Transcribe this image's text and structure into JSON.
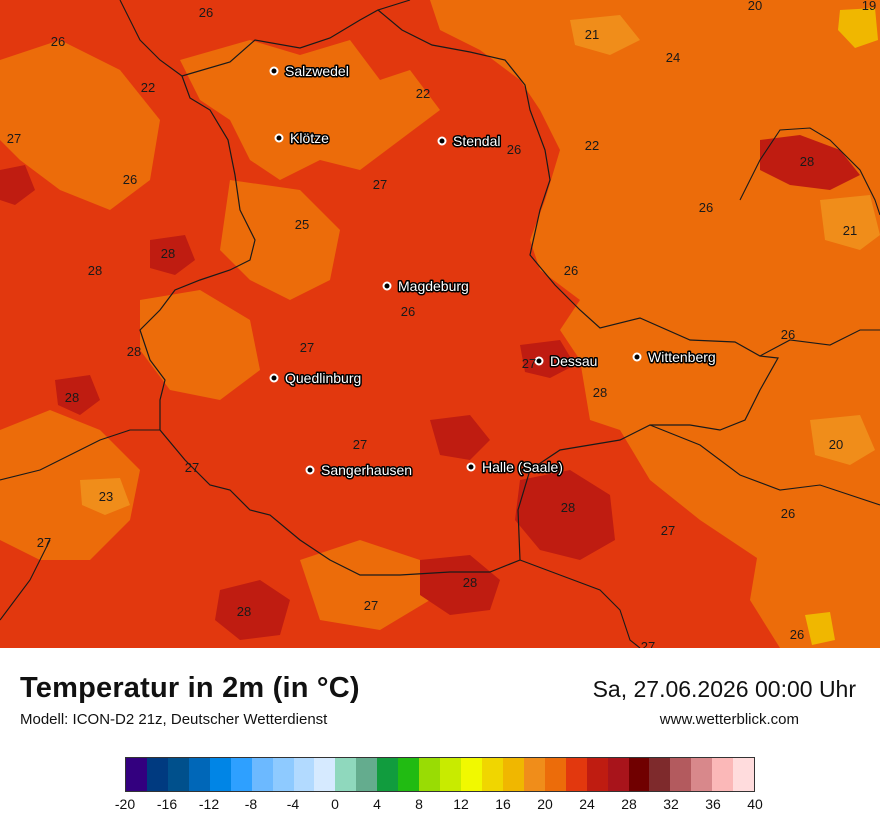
{
  "title": "Temperatur in 2m (in °C)",
  "subtitle": "Modell: ICON-D2 21z, Deutscher Wetterdienst",
  "datetime": "Sa, 27.06.2026 00:00 Uhr",
  "website": "www.wetterblick.com",
  "colorbar": {
    "ticks": [
      "-20",
      "-16",
      "-12",
      "-8",
      "-4",
      "0",
      "4",
      "8",
      "12",
      "16",
      "20",
      "24",
      "28",
      "32",
      "36",
      "40"
    ],
    "colors": [
      "#33007f",
      "#003a80",
      "#00508c",
      "#0067b8",
      "#0085e6",
      "#2ea0ff",
      "#6cb9ff",
      "#8ecaff",
      "#b2daff",
      "#d6eaff",
      "#8fd8bd",
      "#64ac8e",
      "#119c3e",
      "#21bb12",
      "#99dc04",
      "#c8eb00",
      "#f1f900",
      "#f0d600",
      "#f0b700",
      "#f08d1a",
      "#ec6c0a",
      "#e2380e",
      "#bf1c11",
      "#a8141b",
      "#700000",
      "#7e2a2c",
      "#b35a5e",
      "#d8888b",
      "#fbb8b8",
      "#ffdcdd"
    ]
  },
  "cities": [
    {
      "name": "Salzwedel"
    },
    {
      "name": "Klötze"
    },
    {
      "name": "Stendal"
    },
    {
      "name": "Magdeburg"
    },
    {
      "name": "Dessau"
    },
    {
      "name": "Wittenberg"
    },
    {
      "name": "Quedlinburg"
    },
    {
      "name": "Sangerhausen"
    },
    {
      "name": "Halle (Saale)"
    }
  ],
  "values": [
    "26",
    "26",
    "22",
    "27",
    "26",
    "28",
    "28",
    "28",
    "28",
    "27",
    "23",
    "27",
    "28",
    "25",
    "27",
    "22",
    "26",
    "27",
    "21",
    "24",
    "20",
    "19",
    "22",
    "28",
    "26",
    "21",
    "26",
    "26",
    "28",
    "20",
    "27",
    "26",
    "28",
    "27",
    "28",
    "26",
    "26",
    "27",
    "27",
    "27"
  ]
}
